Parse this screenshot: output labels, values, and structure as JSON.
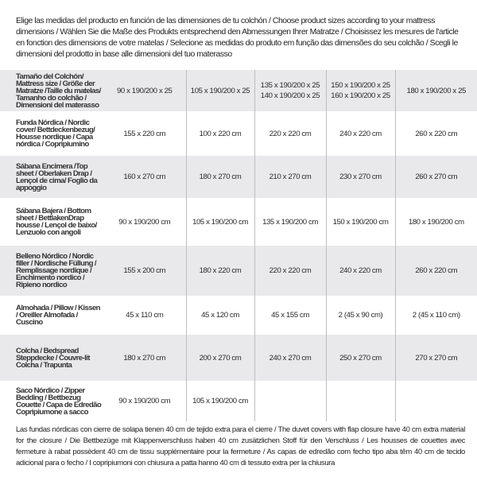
{
  "intro": "Elige las medidas del producto en función de las dimensiones de tu colchón / Choose product sizes according to your mattress dimensions / Wählen Sie die Maße des Produkts entsprechend den Abmessungen Ihrer Matratze / Choisissez les mesures de l'article en fonction des dimensions de votre matelas / Selecione as medidas do produto em função das dimensões do seu colchão / Scegli le dimensioni del prodotto in base alle dimensioni del tuo materasso",
  "header": {
    "label": "Tamaño del Colchón/ Mattress size / Größe der Matratze /Taille du matelas/ Tamanho do colchão / Dimensioni del materasso",
    "cols": [
      {
        "l1": "90 x 190/200 x 25",
        "l2": ""
      },
      {
        "l1": "105 x 190/200 x 25",
        "l2": ""
      },
      {
        "l1": "135 x 190/200 x 25",
        "l2": "140 x 190/200 x 25"
      },
      {
        "l1": "150 x 190/200 x 25",
        "l2": "160 x 190/200 x 25"
      },
      {
        "l1": "180 x 190/200 x 25",
        "l2": ""
      }
    ]
  },
  "rows": [
    {
      "label": "Funda Nórdica /  Nordic cover/ Bettdeckenbezug/ Housse nordique  / Capa nórdica / Copripiumino",
      "values": [
        "155 x 220 cm",
        "100 x 220 cm",
        "220 x 220 cm",
        "240 x 220 cm",
        "260 x 220 cm"
      ]
    },
    {
      "label": "Sábana Encimera /Top sheet / Oberlaken Drap / Lençol de cima/ Foglio da appoggio",
      "values": [
        "160 x 270 cm",
        "180 x 270 cm",
        "210 x 270 cm",
        "230 x 270 cm",
        "260 x 270 cm"
      ]
    },
    {
      "label": "Sábana Bajera / Bottom sheet / BettlakenDrap housse / Lençol de baixo/ Lenzuolo con angoli",
      "values": [
        "90 x 190/200 cm",
        "105 x 190/200 cm",
        "135 x 190/200 cm",
        "150 x 190/200 cm",
        "180 x 190/200 cm"
      ]
    },
    {
      "label": "Belleno Nórdico / Nordic filler / Nordische Füllung / Remplissage nordique / Enchimento nordico / Ripieno nordico",
      "values": [
        "155 x 200 cm",
        "180 x 220 cm",
        "220 x 220 cm",
        "240 x 220 cm",
        "260 x 220 cm"
      ]
    },
    {
      "label": "Almohada  / Pillow / Kissen / Oreiller Almofada / Cuscino",
      "values": [
        "45 x 110 cm",
        "45 x 120 cm",
        "45 x 155 cm",
        "2 (45 x 90 cm)",
        "2 (45 x 110 cm)"
      ]
    },
    {
      "label": "Colcha / Bedspread Steppdecke / Couvre-lit Colcha / Trapunta",
      "values": [
        "180 x 270 cm",
        "200 x 270 cm",
        "240 x 270 cm",
        "250 x 270 cm",
        "270 x 270 cm"
      ]
    },
    {
      "label": "Saco Nórdico / Zipper Bedding / Bettbezug Couette  / Capa de Edredão Copripiumone a sacco",
      "values": [
        "90 x 190/200 cm",
        "105 x 190/200 cm",
        "",
        "",
        ""
      ]
    }
  ],
  "footnote": "Las fundas nórdicas con cierre de solapa tienen 40 cm de tejido extra para el cierre  / The duvet covers with flap closure have 40 cm extra material for the closure / Die Bettbezüge mit Klappenverschluss haben 40 cm zusätzlichen Stoff für den Verschluss / Les housses de couettes avec fermeture à rabat possèdent 40 cm de tissu supplémentaire pour la fermeture / As capas de edredão com fecho tipo aba têm 40 cm de tecido adicional para o fecho / I copripiumoni con chiusura a patta hanno 40 cm di tessuto extra per la chiusura"
}
